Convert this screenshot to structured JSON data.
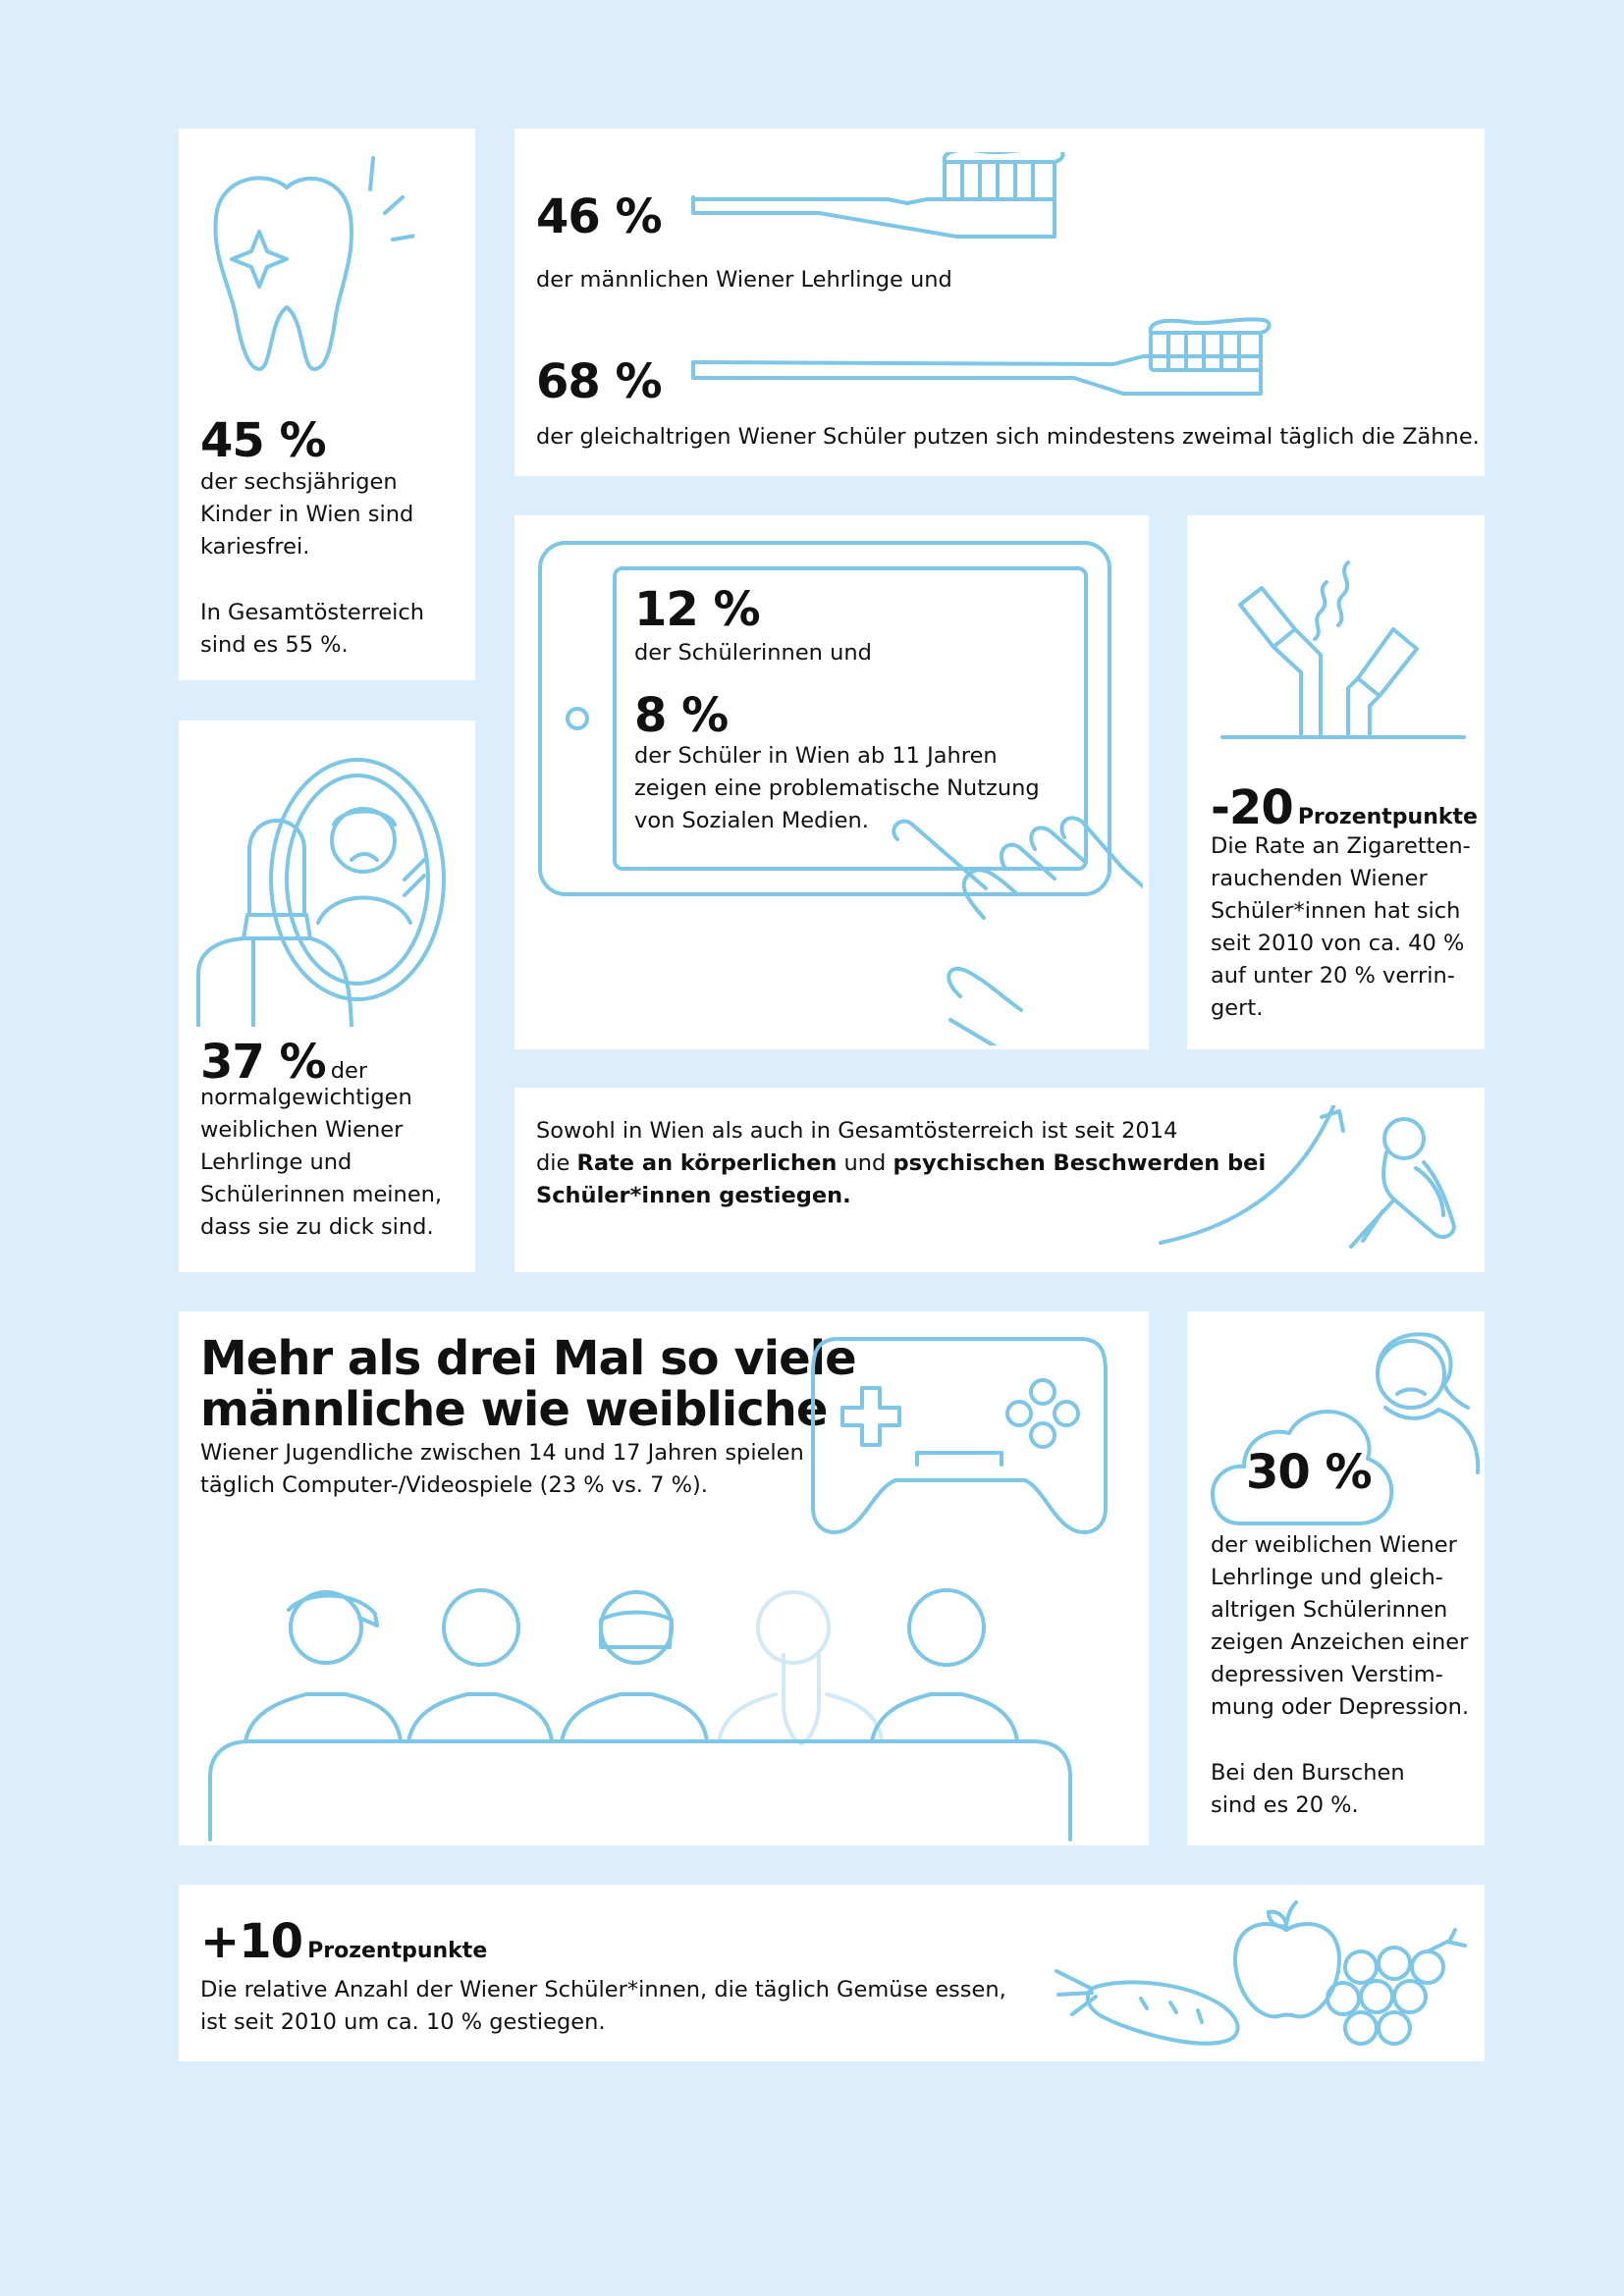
{
  "teeth": {
    "percent": "45 %",
    "lines": [
      "der sechsjährigen",
      "Kinder in Wien sind",
      "kariesfrei."
    ],
    "austria_lines": [
      "In Gesamtösterreich",
      "sind es 55 %."
    ]
  },
  "brushing": {
    "male_percent": "46 %",
    "male_text": "der männlichen Wiener Lehrlinge und",
    "school_percent": "68 %",
    "school_text": "der gleichaltrigen Wiener Schüler putzen sich mindestens zweimal täglich die Zähne."
  },
  "social_media": {
    "girls_percent": "12 %",
    "girls_text": "der Schülerinnen und",
    "boys_percent": "8 %",
    "boys_lines": [
      "der Schüler in Wien ab 11 Jahren",
      "zeigen eine problematische Nutzung",
      "von Sozialen Medien."
    ]
  },
  "smoking": {
    "value": "-20",
    "unit": "Prozentpunkte",
    "lines": [
      "Die Rate an Zigaretten-",
      "rauchenden Wiener",
      "Schüler*innen hat sich",
      "seit 2010 von ca. 40 %",
      "auf unter 20 % verrin-",
      "gert."
    ]
  },
  "body_image": {
    "percent": "37 %",
    "first_line_rest": "der",
    "lines": [
      "normalgewichtigen",
      "weiblichen Wiener",
      "Lehrlinge und",
      "Schülerinnen meinen,",
      "dass sie zu dick sind."
    ]
  },
  "complaints": {
    "line1": "Sowohl in Wien als auch in Gesamtösterreich ist seit 2014",
    "line2_pre": "die ",
    "line2_bold1": "Rate an körperlichen",
    "line2_mid": " und ",
    "line2_bold2": "psychischen Beschwerden bei",
    "line3_bold": "Schüler*innen gestiegen."
  },
  "gaming": {
    "headline_line1": "Mehr als drei Mal so viele",
    "headline_line2": "männliche wie weibliche",
    "line1": "Wiener Jugendliche zwischen 14 und 17 Jahren spielen",
    "line2": "täglich Computer-/Videospiele (23 % vs. 7 %)."
  },
  "depression": {
    "percent": "30 %",
    "lines": [
      "der weiblichen Wiener",
      "Lehrlinge und gleich-",
      "altrigen Schülerinnen",
      "zeigen Anzeichen einer",
      "depressiven Verstim-",
      "mung oder Depression."
    ],
    "boys_lines": [
      "Bei den Burschen",
      "sind es 20 %."
    ]
  },
  "vegetables": {
    "value": "+10",
    "unit": "Prozentpunkte",
    "line1": "Die relative Anzahl der Wiener Schüler*innen, die täglich Gemüse essen,",
    "line2": "ist seit 2010 um ca. 10 % gestiegen."
  },
  "colors": {
    "background": "#dcedfb",
    "card": "#ffffff",
    "icon_stroke": "#7cc6e8"
  },
  "icons": [
    "tooth-icon",
    "toothbrush-icon",
    "tablet-icon",
    "pointing-hand-icon",
    "cigarettes-icon",
    "mirror-icon",
    "rising-arrow-icon",
    "sad-sitting-person-icon",
    "gamepad-icon",
    "audience-icon",
    "sad-woman-icon",
    "cloud-icon",
    "carrot-icon",
    "apple-icon",
    "grapes-icon"
  ]
}
